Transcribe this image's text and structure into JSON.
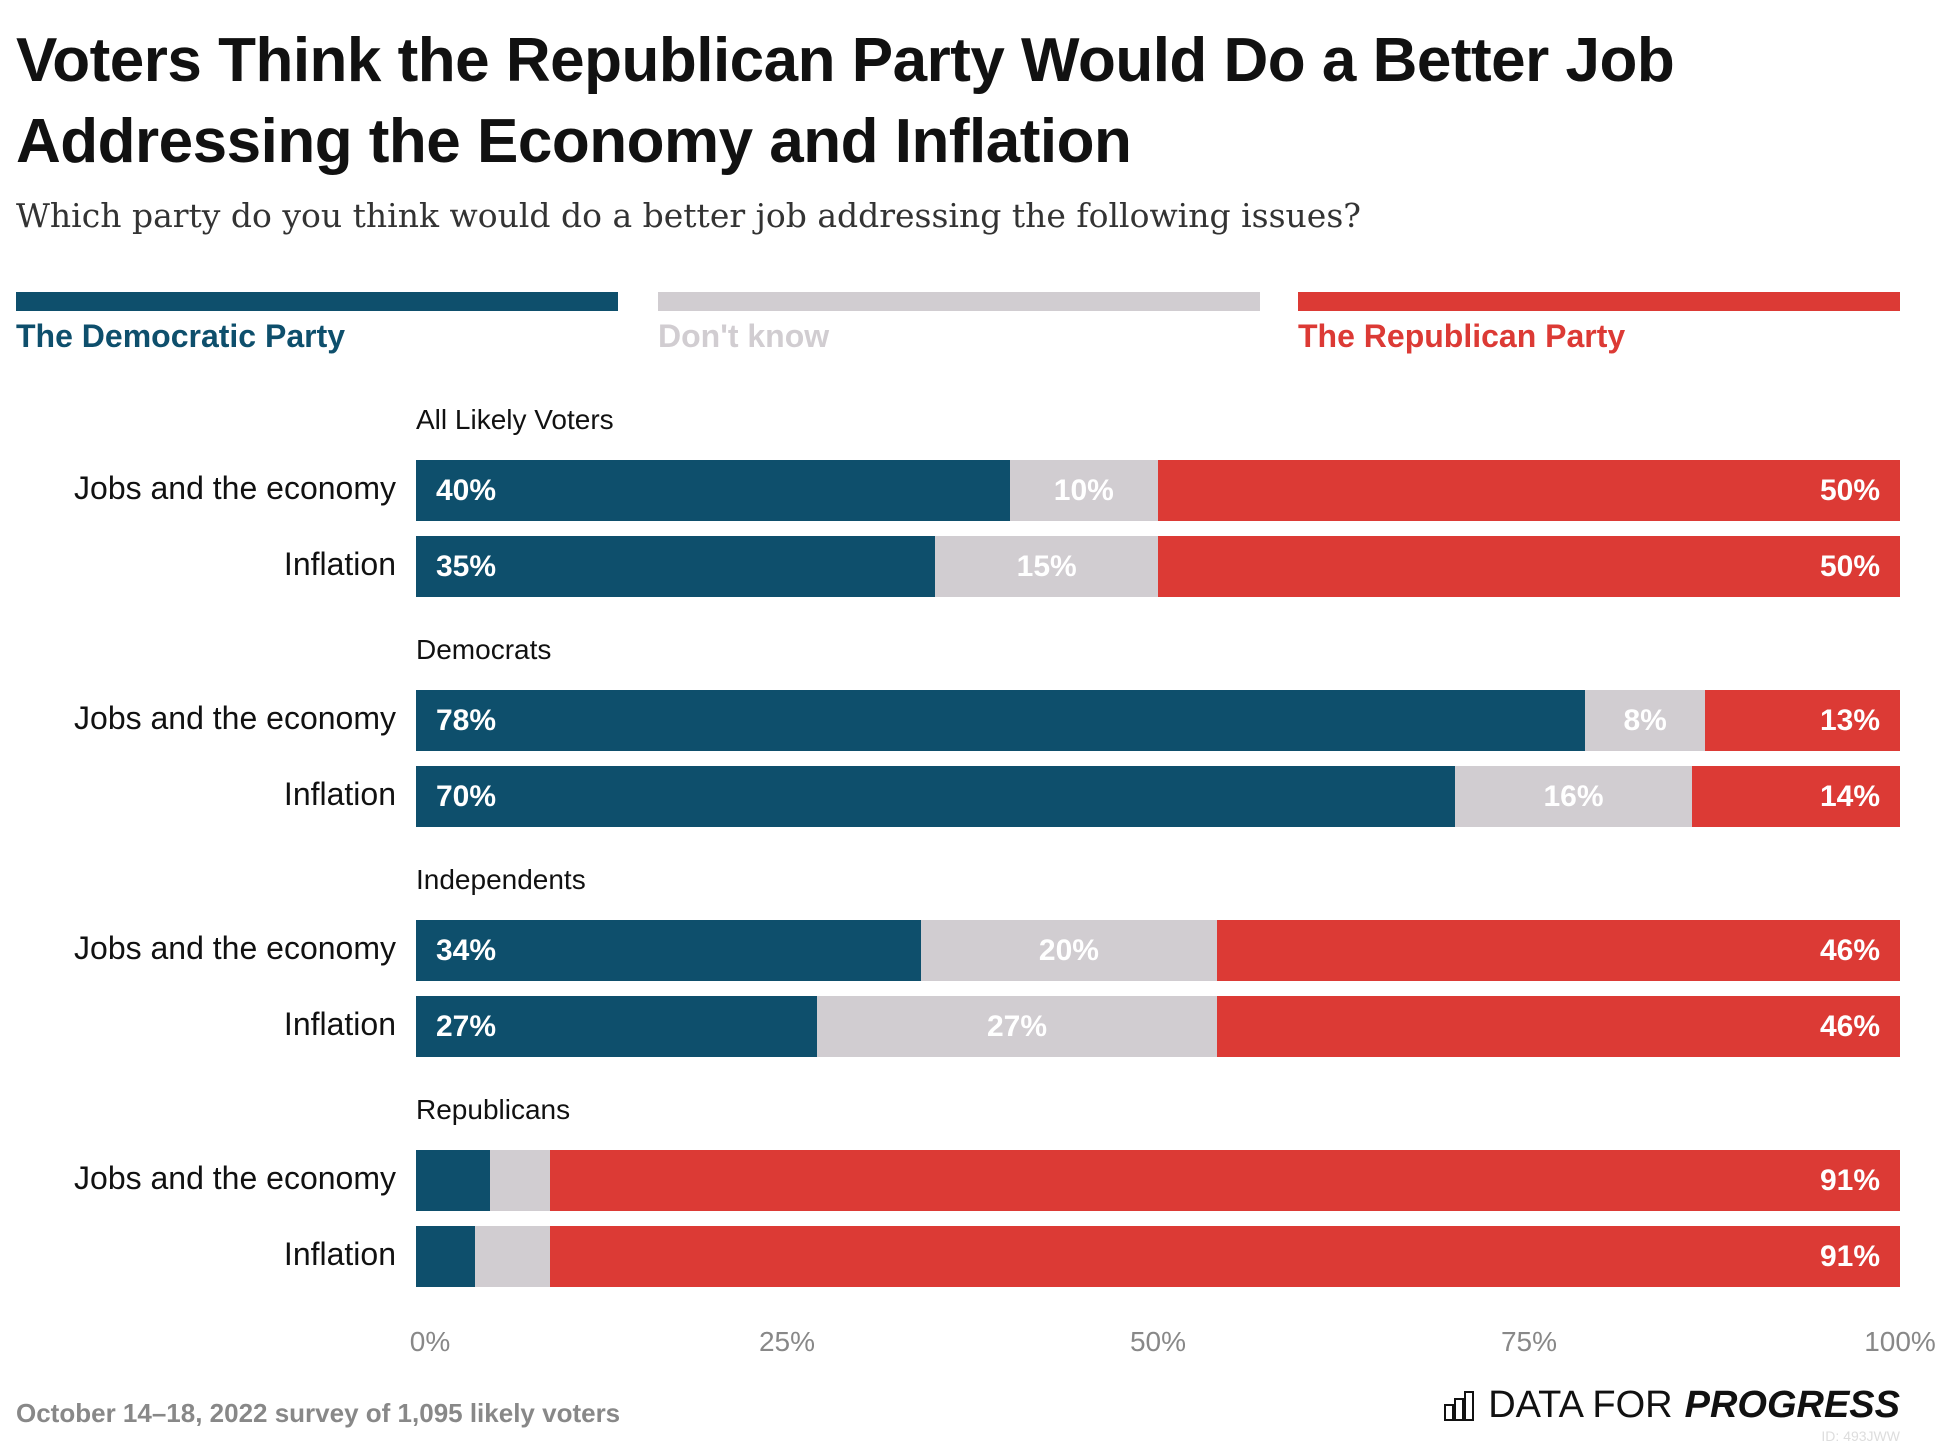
{
  "title": "Voters Think the Republican Party Would Do a Better Job Addressing the Economy and Inflation",
  "subtitle": "Which party do you think would do a better job addressing the following issues?",
  "footer": "October 14–18, 2022 survey of 1,095 likely voters",
  "logo": {
    "light": "DATA FOR",
    "bold": "PROGRESS",
    "icon": "bar-chart-icon"
  },
  "watermark": "ID: 493JWW",
  "colors": {
    "democratic": "#0e4f6c",
    "dont_know": "#d1cdd1",
    "republican": "#dc3a35"
  },
  "chart_data": {
    "type": "bar",
    "orientation": "horizontal",
    "stacked": true,
    "title": "Voters Think the Republican Party Would Do a Better Job Addressing the Economy and Inflation",
    "subtitle": "Which party do you think would do a better job addressing the following issues?",
    "legend": {
      "placement": "top",
      "entries": [
        "The Democratic Party",
        "Don't know",
        "The Republican Party"
      ]
    },
    "xlim": [
      0,
      100
    ],
    "x_ticks": [
      "0%",
      "25%",
      "50%",
      "75%",
      "100%"
    ],
    "series": [
      {
        "name": "The Democratic Party"
      },
      {
        "name": "Don't know"
      },
      {
        "name": "The Republican Party"
      }
    ],
    "groups": [
      {
        "label": "All Likely Voters",
        "rows": [
          {
            "label": "Jobs and the economy",
            "values": [
              40,
              10,
              50
            ],
            "labels": [
              "40%",
              "10%",
              "50%"
            ]
          },
          {
            "label": "Inflation",
            "values": [
              35,
              15,
              50
            ],
            "labels": [
              "35%",
              "15%",
              "50%"
            ]
          }
        ]
      },
      {
        "label": "Democrats",
        "rows": [
          {
            "label": "Jobs and the economy",
            "values": [
              78,
              8,
              13
            ],
            "labels": [
              "78%",
              "8%",
              "13%"
            ]
          },
          {
            "label": "Inflation",
            "values": [
              70,
              16,
              14
            ],
            "labels": [
              "70%",
              "16%",
              "14%"
            ]
          }
        ]
      },
      {
        "label": "Independents",
        "rows": [
          {
            "label": "Jobs and the economy",
            "values": [
              34,
              20,
              46
            ],
            "labels": [
              "34%",
              "20%",
              "46%"
            ]
          },
          {
            "label": "Inflation",
            "values": [
              27,
              27,
              46
            ],
            "labels": [
              "27%",
              "27%",
              "46%"
            ]
          }
        ]
      },
      {
        "label": "Republicans",
        "rows": [
          {
            "label": "Jobs and the economy",
            "values": [
              5,
              4,
              91
            ],
            "labels": [
              "",
              "",
              "91%"
            ]
          },
          {
            "label": "Inflation",
            "values": [
              4,
              5,
              91
            ],
            "labels": [
              "",
              "",
              "91%"
            ]
          }
        ]
      }
    ]
  }
}
